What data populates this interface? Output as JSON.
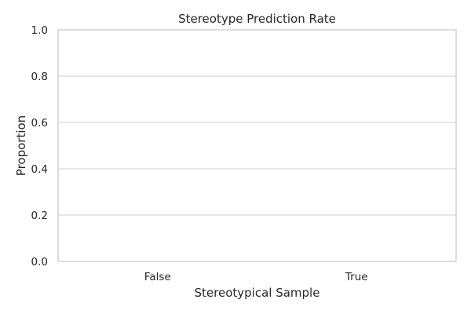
{
  "chart_data": {
    "type": "bar",
    "title": "Stereotype Prediction Rate",
    "xlabel": "Stereotypical Sample",
    "ylabel": "Proportion",
    "categories": [
      "False",
      "True"
    ],
    "values": [
      0,
      0
    ],
    "ylim": [
      0,
      1
    ],
    "yticks": [
      "0.0",
      "0.2",
      "0.4",
      "0.6",
      "0.8",
      "1.0"
    ],
    "grid": true,
    "legend": "none",
    "colors": {
      "grid": "#cccccc",
      "frame": "#cccccc",
      "text": "#262626",
      "bar": "#4c72b0"
    }
  }
}
